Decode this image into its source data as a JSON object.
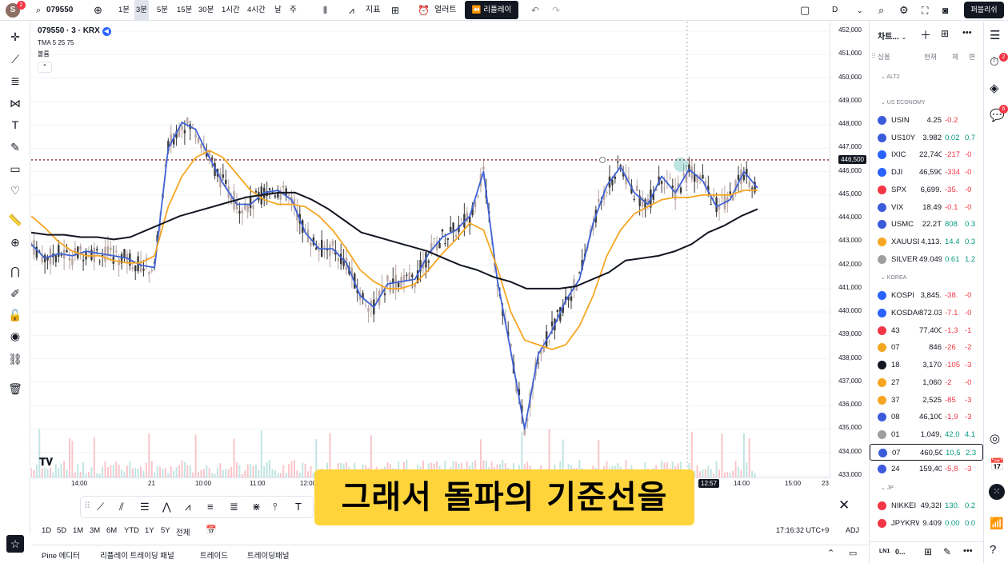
{
  "toolbar": {
    "avatar_letter": "S",
    "avatar_badge": "2",
    "symbol": "079550",
    "intervals": [
      "1분",
      "3분",
      "5분",
      "15분",
      "30분",
      "1시간",
      "4시간",
      "날",
      "주"
    ],
    "active_interval": "3분",
    "indicators_label": "지표",
    "alert_label": "얼러트",
    "replay_label": "리플레이",
    "range_label": "D",
    "publish_label": "퍼블리쉬"
  },
  "legend": {
    "title": "079550 · 3 · KRX",
    "indicator": "TMA 5 25 75",
    "volume_label": "볼륨",
    "collapse_icon": "chevron-up-icon"
  },
  "price_scale": {
    "labels": [
      "452,000",
      "451,000",
      "450,000",
      "449,000",
      "448,000",
      "447,000",
      "446,000",
      "445,000",
      "444,000",
      "443,000",
      "442,000",
      "441,000",
      "440,000",
      "439,000",
      "438,000",
      "437,000",
      "436,000",
      "435,000",
      "434,000",
      "433,000"
    ],
    "current_price": "446,500",
    "current_color": "#131722"
  },
  "time_scale": {
    "labels": [
      "14:00",
      "21",
      "10:00",
      "11:00",
      "12:00",
      "12:57",
      "14:00",
      "15:00",
      "23"
    ],
    "highlight": "12:57"
  },
  "chart_data": {
    "type": "line",
    "series": [
      {
        "name": "TMA 5",
        "color": "#3f62d6",
        "values": [
          442.9,
          442.3,
          442.5,
          442.4,
          442.6,
          442.5,
          442.4,
          442.3,
          442.0,
          441.9,
          447.0,
          448.1,
          447.8,
          446.6,
          445.5,
          444.6,
          444.6,
          445.1,
          445.2,
          444.8,
          443.4,
          442.7,
          442.7,
          442.1,
          440.7,
          440.2,
          441.2,
          441.3,
          441.4,
          442.5,
          443.2,
          443.5,
          444.1,
          446.0,
          441.4,
          438.3,
          435.0,
          438.2,
          439.2,
          440.5,
          441.4,
          443.8,
          445.4,
          446.2,
          445.1,
          444.6,
          445.8,
          445.1,
          446.1,
          445.6,
          444.5,
          444.8,
          446.0,
          445.3
        ]
      },
      {
        "name": "TMA 25",
        "color": "#f5a623",
        "values": [
          444.1,
          443.6,
          443.0,
          442.6,
          442.4,
          442.4,
          442.2,
          442.1,
          442.1,
          442.4,
          444.5,
          445.8,
          446.6,
          446.9,
          446.6,
          445.9,
          445.2,
          444.8,
          444.6,
          444.6,
          444.5,
          444.1,
          443.5,
          442.7,
          441.8,
          441.3,
          441.0,
          441.0,
          441.2,
          441.8,
          442.5,
          443.1,
          443.8,
          443.5,
          441.9,
          440.0,
          438.8,
          438.6,
          438.4,
          438.6,
          439.4,
          440.7,
          442.4,
          443.5,
          444.2,
          444.5,
          444.8,
          444.9,
          444.9,
          445.0,
          445.0,
          445.0,
          445.2,
          445.2
        ]
      },
      {
        "name": "TMA 75",
        "color": "#131722",
        "values": [
          443.4,
          443.3,
          443.3,
          443.2,
          443.2,
          443.1,
          443.2,
          443.5,
          443.8,
          444.1,
          444.3,
          444.5,
          444.7,
          444.9,
          445.0,
          445.1,
          445.1,
          444.8,
          444.4,
          443.9,
          443.4,
          443.2,
          443.0,
          442.8,
          442.6,
          442.3,
          442.0,
          441.8,
          441.5,
          441.3,
          441.0,
          441.0,
          441.0,
          441.1,
          441.4,
          441.7,
          442.2,
          442.3,
          442.4,
          442.6,
          442.9,
          443.4,
          443.7,
          444.1,
          444.4
        ]
      }
    ],
    "ylim": [
      433,
      452
    ],
    "current_price_line": 446.5
  },
  "bottom": {
    "ranges": [
      "1D",
      "5D",
      "1M",
      "3M",
      "6M",
      "YTD",
      "1Y",
      "5Y",
      "전체"
    ],
    "clock": "17:16:32 UTC+9",
    "adj": "ADJ",
    "tabs": [
      "Pine 에디터",
      "리플레이 트레이딩 패널",
      "트레이드",
      "트레이딩패널"
    ]
  },
  "subtitle": "그래서 돌파의 기준선을",
  "watchlist": {
    "title": "차트...",
    "columns": [
      "심볼",
      "현재",
      "체",
      "변"
    ],
    "sections": [
      {
        "name": "ALT2",
        "rows": []
      },
      {
        "name": "US ECONOMY",
        "rows": [
          {
            "sym": "USIN",
            "last": "4.25",
            "chg": "-0.2",
            "pct": "",
            "dir": "dn",
            "icon": "#3b5bdb"
          },
          {
            "sym": "US10Y",
            "last": "3.982",
            "chg": "0.02",
            "pct": "0.7",
            "dir": "up",
            "icon": "#3b5bdb"
          },
          {
            "sym": "IXIC",
            "last": "22,74C",
            "chg": "-217",
            "pct": "-0",
            "dir": "dn",
            "icon": "#2962ff"
          },
          {
            "sym": "DJI",
            "last": "46,59C",
            "chg": "-334",
            "pct": "-0",
            "dir": "dn",
            "icon": "#2962ff"
          },
          {
            "sym": "SPX",
            "last": "6,699.",
            "chg": "-35.",
            "pct": "-0",
            "dir": "dn",
            "icon": "#f23645"
          },
          {
            "sym": "VIX",
            "last": "18.49",
            "chg": "-0.1",
            "pct": "-0",
            "dir": "dn",
            "icon": "#3b5bdb"
          },
          {
            "sym": "USMC",
            "last": "22.2T",
            "chg": "808",
            "pct": "0.3",
            "dir": "up",
            "icon": "#3b5bdb"
          },
          {
            "sym": "XAUUSD",
            "last": "4,113.",
            "chg": "14.4",
            "pct": "0.3",
            "dir": "up",
            "icon": "#f5a623"
          },
          {
            "sym": "SILVER",
            "last": "49.049",
            "chg": "0.61",
            "pct": "1.2",
            "dir": "up",
            "icon": "#9e9e9e"
          }
        ]
      },
      {
        "name": "KOREA",
        "rows": [
          {
            "sym": "KOSPI",
            "last": "3,845.",
            "chg": "-38.",
            "pct": "-0",
            "dir": "dn",
            "icon": "#2962ff"
          },
          {
            "sym": "KOSDAQ",
            "last": "872.03",
            "chg": "-7.1",
            "pct": "-0",
            "dir": "dn",
            "icon": "#2962ff"
          },
          {
            "sym": "43",
            "last": "77,40C",
            "chg": "-1,3",
            "pct": "-1",
            "dir": "dn",
            "icon": "#f23645"
          },
          {
            "sym": "07",
            "last": "846",
            "chg": "-26",
            "pct": "-2",
            "dir": "dn",
            "icon": "#f5a623"
          },
          {
            "sym": "18",
            "last": "3,170",
            "chg": "-105",
            "pct": "-3",
            "dir": "dn",
            "icon": "#131722"
          },
          {
            "sym": "27",
            "last": "1,060",
            "chg": "-2",
            "pct": "-0",
            "dir": "dn",
            "icon": "#f5a623"
          },
          {
            "sym": "37",
            "last": "2,525",
            "chg": "-85",
            "pct": "-3",
            "dir": "dn",
            "icon": "#f5a623"
          },
          {
            "sym": "08",
            "last": "46,10C",
            "chg": "-1,9",
            "pct": "-3",
            "dir": "dn",
            "icon": "#3b5bdb"
          },
          {
            "sym": "01",
            "last": "1,049,",
            "chg": "42,0",
            "pct": "4.1",
            "dir": "up",
            "icon": "#9e9e9e"
          },
          {
            "sym": "07",
            "last": "460,5C",
            "chg": "10,5",
            "pct": "2.3",
            "dir": "up",
            "icon": "#3b5bdb",
            "selected": true
          },
          {
            "sym": "24",
            "last": "159,40",
            "chg": "-5,8",
            "pct": "-3",
            "dir": "dn",
            "icon": "#3b5bdb"
          }
        ]
      },
      {
        "name": "JP",
        "rows": [
          {
            "sym": "NIKKEI",
            "last": "49,32I",
            "chg": "130.",
            "pct": "0.2",
            "dir": "up",
            "icon": "#f23645"
          },
          {
            "sym": "JPYKRW",
            "last": "9.409",
            "chg": "0.00",
            "pct": "0.0",
            "dir": "up",
            "icon": "#f23645"
          }
        ]
      }
    ],
    "footer_symbol": "0..."
  },
  "right_bar": {
    "badge1": "2",
    "badge2": "6"
  }
}
